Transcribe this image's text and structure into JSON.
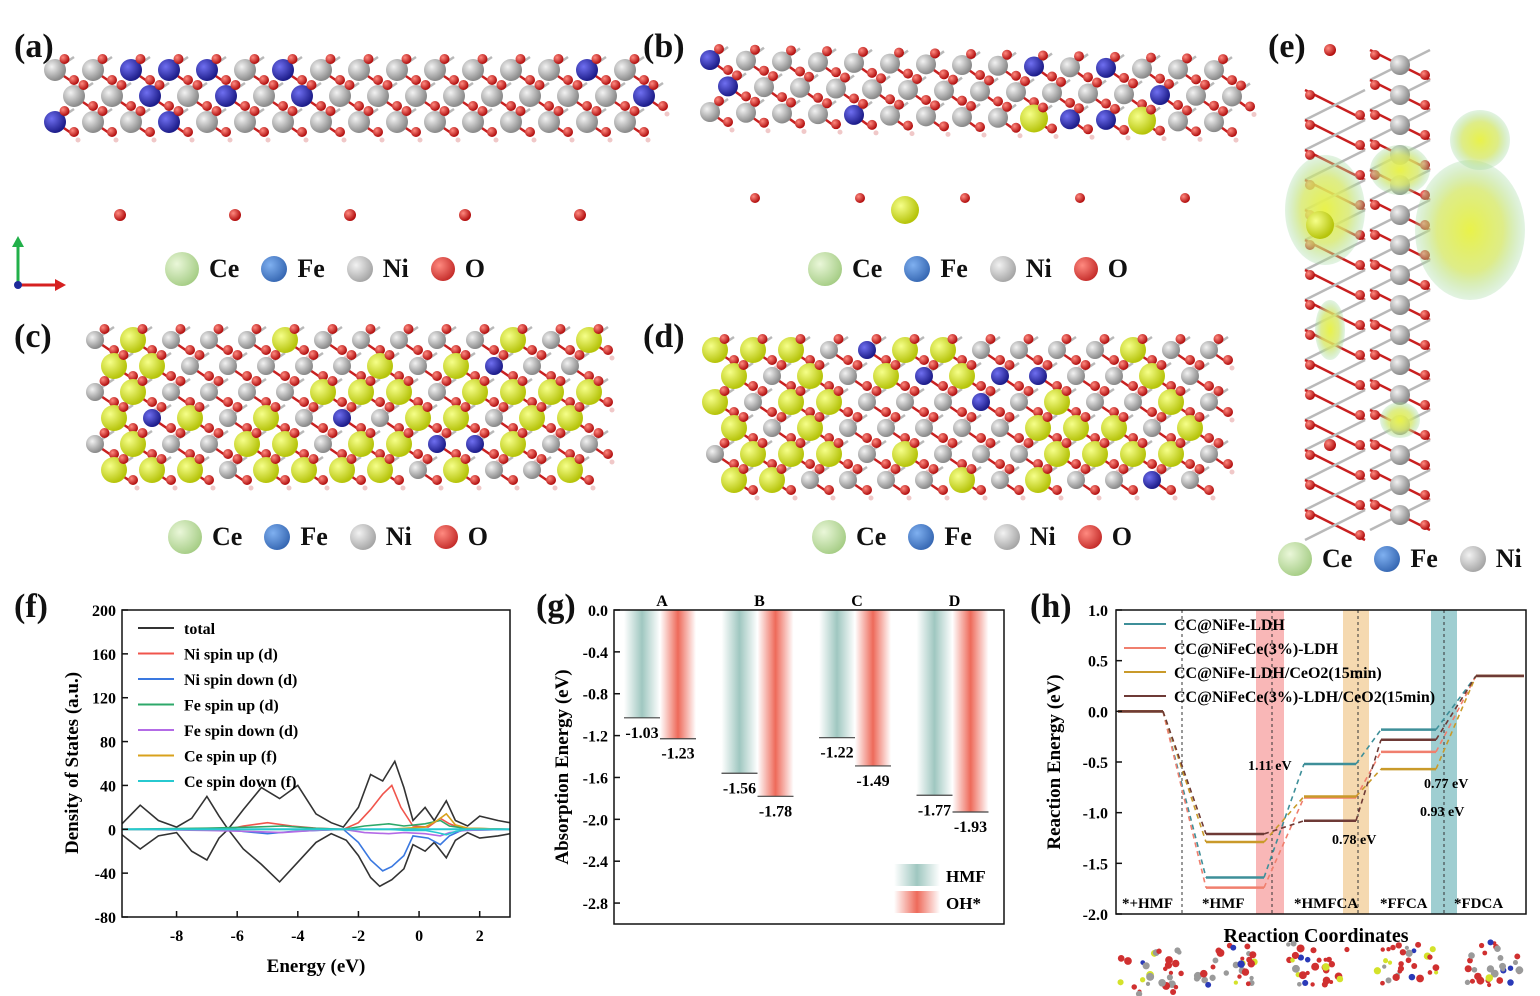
{
  "panels": {
    "a": {
      "label": "(a)"
    },
    "b": {
      "label": "(b)"
    },
    "c": {
      "label": "(c)"
    },
    "d": {
      "label": "(d)"
    },
    "e": {
      "label": "(e)"
    },
    "f": {
      "label": "(f)"
    },
    "g": {
      "label": "(g)"
    },
    "h": {
      "label": "(h)"
    }
  },
  "atom_legend": {
    "ce": "Ce",
    "fe": "Fe",
    "ni": "Ni",
    "o": "O",
    "colors": {
      "ce": "#b5dc94",
      "fe": "#2a5fb8",
      "ni": "#b3b3b3",
      "o": "#cf1b1b"
    }
  },
  "chart_data": [
    {
      "type": "line",
      "panel": "f",
      "xlabel": "Energy (eV)",
      "ylabel": "Density of States (a.u.)",
      "xlim": [
        -9.8,
        3
      ],
      "ylim": [
        -80,
        200
      ],
      "xticks": [
        "-8",
        "-6",
        "-4",
        "-2",
        "0",
        "2"
      ],
      "yticks": [
        "200",
        "160",
        "120",
        "80",
        "40",
        "0",
        "-40",
        "-80"
      ],
      "series": [
        {
          "name": "total",
          "color": "#333333"
        },
        {
          "name": "Ni spin up (d)",
          "color": "#f0554c"
        },
        {
          "name": "Ni spin down (d)",
          "color": "#3a78e0"
        },
        {
          "name": "Fe spin up (d)",
          "color": "#2ea86a"
        },
        {
          "name": "Fe spin down (d)",
          "color": "#b36be6"
        },
        {
          "name": "Ce spin up (f)",
          "color": "#d8a21c"
        },
        {
          "name": "Ce spin down (f)",
          "color": "#27c9d0"
        }
      ],
      "curves": {
        "total_up": [
          [
            -9.8,
            5
          ],
          [
            -9.2,
            22
          ],
          [
            -8.6,
            8
          ],
          [
            -8.0,
            2
          ],
          [
            -7.5,
            10
          ],
          [
            -7.0,
            30
          ],
          [
            -6.6,
            12
          ],
          [
            -6.3,
            0
          ],
          [
            -5.8,
            18
          ],
          [
            -5.2,
            38
          ],
          [
            -4.6,
            28
          ],
          [
            -4.0,
            40
          ],
          [
            -3.4,
            14
          ],
          [
            -2.9,
            6
          ],
          [
            -2.5,
            2
          ],
          [
            -2.0,
            20
          ],
          [
            -1.6,
            50
          ],
          [
            -1.2,
            44
          ],
          [
            -0.8,
            62
          ],
          [
            -0.5,
            38
          ],
          [
            -0.2,
            8
          ],
          [
            0.2,
            20
          ],
          [
            0.5,
            8
          ],
          [
            0.9,
            26
          ],
          [
            1.2,
            8
          ],
          [
            1.6,
            3
          ],
          [
            2.0,
            12
          ],
          [
            2.6,
            8
          ],
          [
            3.0,
            6
          ]
        ],
        "total_down": [
          [
            -9.8,
            -5
          ],
          [
            -9.2,
            -18
          ],
          [
            -8.6,
            -6
          ],
          [
            -8.0,
            -3
          ],
          [
            -7.5,
            -20
          ],
          [
            -7.0,
            -28
          ],
          [
            -6.6,
            -8
          ],
          [
            -6.3,
            0
          ],
          [
            -5.8,
            -18
          ],
          [
            -5.2,
            -32
          ],
          [
            -4.6,
            -48
          ],
          [
            -4.0,
            -30
          ],
          [
            -3.4,
            -12
          ],
          [
            -2.9,
            -4
          ],
          [
            -2.4,
            -10
          ],
          [
            -2.0,
            -24
          ],
          [
            -1.6,
            -44
          ],
          [
            -1.3,
            -52
          ],
          [
            -0.9,
            -46
          ],
          [
            -0.5,
            -36
          ],
          [
            -0.2,
            -14
          ],
          [
            0.2,
            -20
          ],
          [
            0.5,
            -12
          ],
          [
            0.9,
            -26
          ],
          [
            1.2,
            -10
          ],
          [
            1.6,
            -3
          ],
          [
            2.0,
            -8
          ],
          [
            2.6,
            -6
          ],
          [
            3.0,
            -4
          ]
        ],
        "ni_up": [
          [
            -9.8,
            0
          ],
          [
            -6.3,
            0
          ],
          [
            -5.8,
            3
          ],
          [
            -5.0,
            6
          ],
          [
            -4.2,
            3
          ],
          [
            -3.4,
            1
          ],
          [
            -2.5,
            0
          ],
          [
            -2.0,
            6
          ],
          [
            -1.6,
            18
          ],
          [
            -1.2,
            32
          ],
          [
            -0.9,
            40
          ],
          [
            -0.6,
            20
          ],
          [
            -0.2,
            3
          ],
          [
            0.3,
            2
          ],
          [
            0.7,
            10
          ],
          [
            1.0,
            5
          ],
          [
            1.4,
            1
          ],
          [
            3.0,
            0
          ]
        ],
        "ni_down": [
          [
            -9.8,
            0
          ],
          [
            -6.3,
            0
          ],
          [
            -5.8,
            -2
          ],
          [
            -5.0,
            -4
          ],
          [
            -4.2,
            -2
          ],
          [
            -3.4,
            -1
          ],
          [
            -2.5,
            0
          ],
          [
            -2.0,
            -12
          ],
          [
            -1.6,
            -28
          ],
          [
            -1.2,
            -38
          ],
          [
            -0.9,
            -34
          ],
          [
            -0.5,
            -24
          ],
          [
            -0.2,
            -6
          ],
          [
            0.3,
            -8
          ],
          [
            0.7,
            -14
          ],
          [
            1.0,
            -6
          ],
          [
            1.4,
            -1
          ],
          [
            3.0,
            0
          ]
        ],
        "fe_up": [
          [
            -9.8,
            0
          ],
          [
            -7.0,
            1
          ],
          [
            -5.5,
            2
          ],
          [
            -4.5,
            3
          ],
          [
            -3.5,
            1
          ],
          [
            -2.5,
            0
          ],
          [
            -1.8,
            3
          ],
          [
            -1.0,
            5
          ],
          [
            -0.5,
            3
          ],
          [
            0.2,
            5
          ],
          [
            0.7,
            8
          ],
          [
            1.0,
            3
          ],
          [
            1.5,
            1
          ],
          [
            3.0,
            0
          ]
        ],
        "fe_down": [
          [
            -9.8,
            0
          ],
          [
            -7.0,
            -1
          ],
          [
            -5.5,
            -2
          ],
          [
            -4.5,
            -3
          ],
          [
            -3.5,
            -1
          ],
          [
            -2.5,
            0
          ],
          [
            -1.8,
            -3
          ],
          [
            -1.0,
            -4
          ],
          [
            -0.5,
            -3
          ],
          [
            0.2,
            -4
          ],
          [
            0.7,
            -6
          ],
          [
            1.0,
            -3
          ],
          [
            1.5,
            -1
          ],
          [
            3.0,
            0
          ]
        ],
        "ce_up": [
          [
            -9.8,
            0
          ],
          [
            -1.0,
            0
          ],
          [
            -0.4,
            1
          ],
          [
            0.2,
            2
          ],
          [
            0.6,
            8
          ],
          [
            0.9,
            14
          ],
          [
            1.2,
            4
          ],
          [
            1.6,
            1
          ],
          [
            3.0,
            0
          ]
        ],
        "ce_down": [
          [
            -9.8,
            0
          ],
          [
            -1.0,
            0
          ],
          [
            -0.4,
            -1
          ],
          [
            0.2,
            -1
          ],
          [
            0.6,
            -3
          ],
          [
            0.9,
            -5
          ],
          [
            1.2,
            -2
          ],
          [
            1.6,
            0
          ],
          [
            3.0,
            0
          ]
        ]
      }
    },
    {
      "type": "bar",
      "panel": "g",
      "ylabel": "Absorption Energy (eV)",
      "ylim": [
        -3.0,
        0.0
      ],
      "yticks": [
        "0.0",
        "-0.4",
        "-0.8",
        "-1.2",
        "-1.6",
        "-2.0",
        "-2.4",
        "-2.8"
      ],
      "categories": [
        "A",
        "B",
        "C",
        "D"
      ],
      "series": [
        {
          "name": "HMF",
          "values": [
            -1.03,
            -1.56,
            -1.22,
            -1.77
          ],
          "labels": [
            "-1.03",
            "-1.56",
            "-1.22",
            "-1.77"
          ],
          "color": "#9fc7c0"
        },
        {
          "name": "OH*",
          "values": [
            -1.23,
            -1.78,
            -1.49,
            -1.93
          ],
          "labels": [
            "-1.23",
            "-1.78",
            "-1.49",
            "-1.93"
          ],
          "color": "#ee6a5a"
        }
      ],
      "legend_position": "bottom-right"
    },
    {
      "type": "line",
      "panel": "h",
      "xlabel": "Reaction Coordinates",
      "ylabel": "Reaction Energy (eV)",
      "ylim": [
        -2.0,
        1.0
      ],
      "yticks": [
        "1.0",
        "0.5",
        "0.0",
        "-0.5",
        "-1.0",
        "-1.5",
        "-2.0"
      ],
      "stages": [
        "*+HMF",
        "*HMF",
        "*HMFCA",
        "*FFCA",
        "*FDCA"
      ],
      "series": [
        {
          "name": "CC@NiFe-LDH",
          "values": [
            0,
            -1.64,
            -0.52,
            -0.18,
            0.35
          ],
          "color": "#3e8f99"
        },
        {
          "name": "CC@NiFeCe(3%)-LDH",
          "values": [
            0,
            -1.74,
            -0.85,
            -0.4,
            0.35
          ],
          "color": "#f07f6e"
        },
        {
          "name": "CC@NiFe-LDH/CeO2(15min)",
          "values": [
            0,
            -1.29,
            -0.84,
            -0.57,
            0.35
          ],
          "color": "#c99a2a"
        },
        {
          "name": "CC@NiFeCe(3%)-LDH/CeO2(15min)",
          "values": [
            0,
            -1.21,
            -1.08,
            -0.28,
            0.35
          ],
          "color": "#6e3a36"
        }
      ],
      "annotations": [
        "1.11 eV",
        "0.78 eV",
        "0.77 eV",
        "0.93 eV"
      ]
    }
  ]
}
